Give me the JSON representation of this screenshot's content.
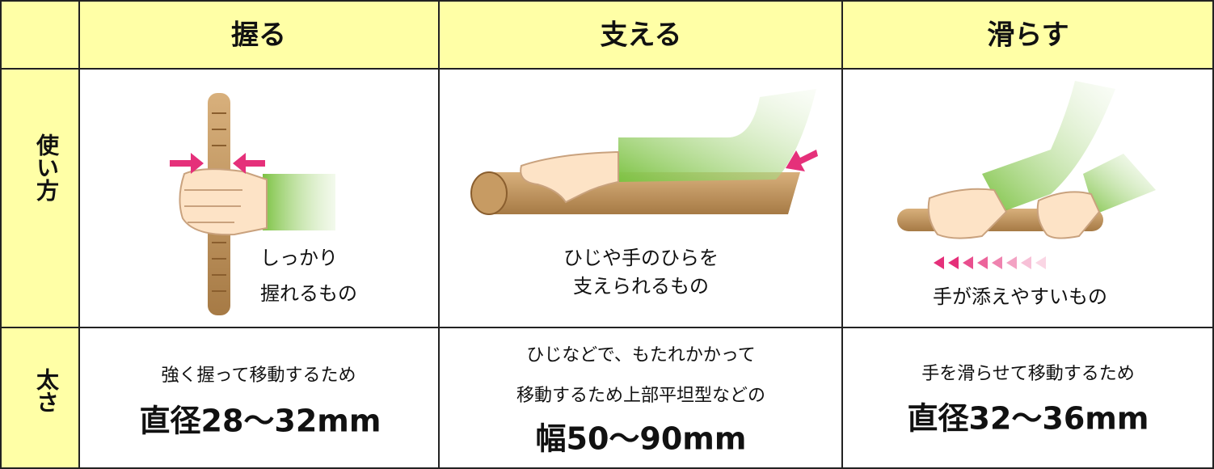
{
  "table": {
    "header": [
      "握る",
      "支える",
      "滑らす"
    ],
    "rows": [
      {
        "label": "使い方",
        "cells": [
          [
            "しっかり",
            "握れるもの"
          ],
          [
            "ひじや手のひらを",
            "支えられるもの"
          ],
          [
            "手が添えやすいもの"
          ]
        ]
      },
      {
        "label": "太さ",
        "cells": [
          {
            "lines": [
              "強く握って移動するため"
            ],
            "size": "直径28～32mm"
          },
          {
            "lines": [
              "ひじなどで、もたれかかって",
              "移動するため上部平坦型などの"
            ],
            "size": "幅50～90mm"
          },
          {
            "lines": [
              "手を滑らせて移動するため"
            ],
            "size": "直径32～36mm"
          }
        ]
      }
    ]
  }
}
